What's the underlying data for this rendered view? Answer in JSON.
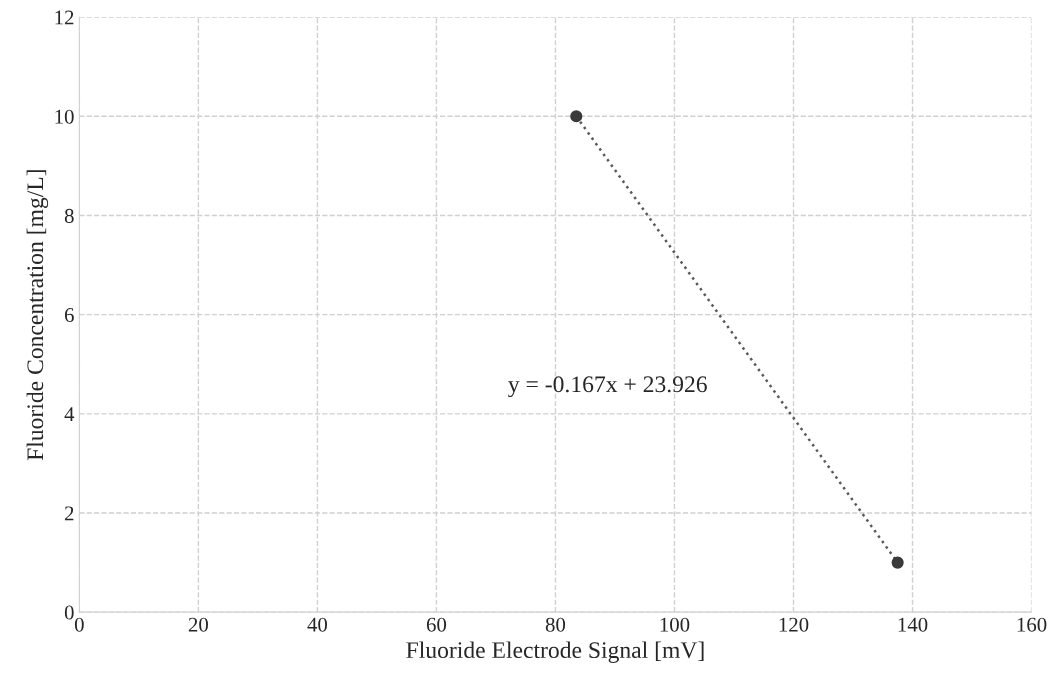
{
  "chart_data": {
    "type": "scatter",
    "xlabel": "Fluoride Electrode Signal [mV]",
    "ylabel": "Fluoride Concentration [mg/L]",
    "xlim": [
      0,
      160
    ],
    "xticks": [
      0,
      20,
      40,
      60,
      80,
      100,
      120,
      140,
      160
    ],
    "ylim": [
      0,
      12
    ],
    "yticks": [
      0,
      2,
      4,
      6,
      8,
      10,
      12
    ],
    "grid": true,
    "x": [
      83.5,
      137.5
    ],
    "annotations": [
      "y = -0.167x + 23.926"
    ],
    "series": [
      {
        "values": [
          10,
          1
        ],
        "color": "#3a3a3a",
        "marker": "circle"
      },
      {
        "type": "line",
        "values": [
          10,
          1
        ],
        "color": "#595959",
        "line_style": "dotted"
      }
    ]
  }
}
